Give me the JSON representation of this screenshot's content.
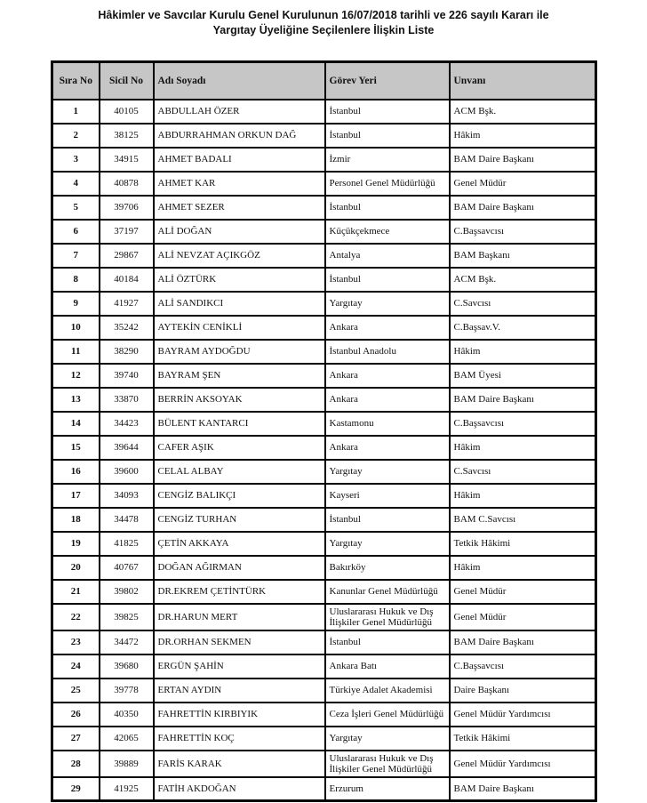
{
  "title": {
    "line1": "Hâkimler ve Savcılar Kurulu Genel Kurulunun 16/07/2018 tarihli ve 226 sayılı Kararı ile",
    "line2": "Yargıtay Üyeliğine Seçilenlere İlişkin Liste"
  },
  "table": {
    "columns": [
      "Sıra No",
      "Sicil No",
      "Adı Soyadı",
      "Görev Yeri",
      "Unvanı"
    ],
    "column_keys": [
      "sira-no",
      "sicil-no",
      "adi-soyadi",
      "gorev-yeri",
      "unvani"
    ],
    "header_bg_color": "#c6c6c6",
    "border_color": "#000000",
    "rows": [
      [
        "1",
        "40105",
        "ABDULLAH ÖZER",
        "İstanbul",
        "ACM Bşk."
      ],
      [
        "2",
        "38125",
        "ABDURRAHMAN ORKUN DAĞ",
        "İstanbul",
        "Hâkim"
      ],
      [
        "3",
        "34915",
        "AHMET BADALI",
        "İzmir",
        "BAM Daire Başkanı"
      ],
      [
        "4",
        "40878",
        "AHMET KAR",
        "Personel Genel Müdürlüğü",
        "Genel Müdür"
      ],
      [
        "5",
        "39706",
        "AHMET SEZER",
        "İstanbul",
        "BAM Daire Başkanı"
      ],
      [
        "6",
        "37197",
        "ALİ DOĞAN",
        "Küçükçekmece",
        "C.Başsavcısı"
      ],
      [
        "7",
        "29867",
        "ALİ NEVZAT AÇIKGÖZ",
        "Antalya",
        "BAM Başkanı"
      ],
      [
        "8",
        "40184",
        "ALİ ÖZTÜRK",
        "İstanbul",
        "ACM Bşk."
      ],
      [
        "9",
        "41927",
        "ALİ SANDIKCI",
        "Yargıtay",
        "C.Savcısı"
      ],
      [
        "10",
        "35242",
        "AYTEKİN CENİKLİ",
        "Ankara",
        "C.Başsav.V."
      ],
      [
        "11",
        "38290",
        "BAYRAM AYDOĞDU",
        "İstanbul Anadolu",
        "Hâkim"
      ],
      [
        "12",
        "39740",
        "BAYRAM ŞEN",
        "Ankara",
        "BAM Üyesi"
      ],
      [
        "13",
        "33870",
        "BERRİN AKSOYAK",
        "Ankara",
        "BAM Daire Başkanı"
      ],
      [
        "14",
        "34423",
        "BÜLENT KANTARCI",
        "Kastamonu",
        "C.Başsavcısı"
      ],
      [
        "15",
        "39644",
        "CAFER AŞIK",
        "Ankara",
        "Hâkim"
      ],
      [
        "16",
        "39600",
        "CELAL ALBAY",
        "Yargıtay",
        "C.Savcısı"
      ],
      [
        "17",
        "34093",
        "CENGİZ BALIKÇI",
        "Kayseri",
        "Hâkim"
      ],
      [
        "18",
        "34478",
        "CENGİZ TURHAN",
        "İstanbul",
        "BAM C.Savcısı"
      ],
      [
        "19",
        "41825",
        "ÇETİN AKKAYA",
        "Yargıtay",
        "Tetkik Hâkimi"
      ],
      [
        "20",
        "40767",
        "DOĞAN AĞIRMAN",
        "Bakırköy",
        "Hâkim"
      ],
      [
        "21",
        "39802",
        "DR.EKREM ÇETİNTÜRK",
        "Kanunlar Genel Müdürlüğü",
        "Genel Müdür"
      ],
      [
        "22",
        "39825",
        "DR.HARUN MERT",
        "Uluslararası Hukuk ve Dış İlişkiler Genel Müdürlüğü",
        "Genel Müdür"
      ],
      [
        "23",
        "34472",
        "DR.ORHAN SEKMEN",
        "İstanbul",
        "BAM Daire Başkanı"
      ],
      [
        "24",
        "39680",
        "ERGÜN ŞAHİN",
        "Ankara Batı",
        "C.Başsavcısı"
      ],
      [
        "25",
        "39778",
        "ERTAN AYDIN",
        "Türkiye Adalet Akademisi",
        "Daire Başkanı"
      ],
      [
        "26",
        "40350",
        "FAHRETTİN KIRBIYIK",
        "Ceza İşleri Genel Müdürlüğü",
        "Genel Müdür Yardımcısı"
      ],
      [
        "27",
        "42065",
        "FAHRETTİN KOÇ",
        "Yargıtay",
        "Tetkik Hâkimi"
      ],
      [
        "28",
        "39889",
        "FARİS KARAK",
        "Uluslararası Hukuk ve Dış İlişkiler Genel Müdürlüğü",
        "Genel Müdür Yardımcısı"
      ],
      [
        "29",
        "41925",
        "FATİH AKDOĞAN",
        "Erzurum",
        "BAM Daire Başkanı"
      ]
    ]
  }
}
